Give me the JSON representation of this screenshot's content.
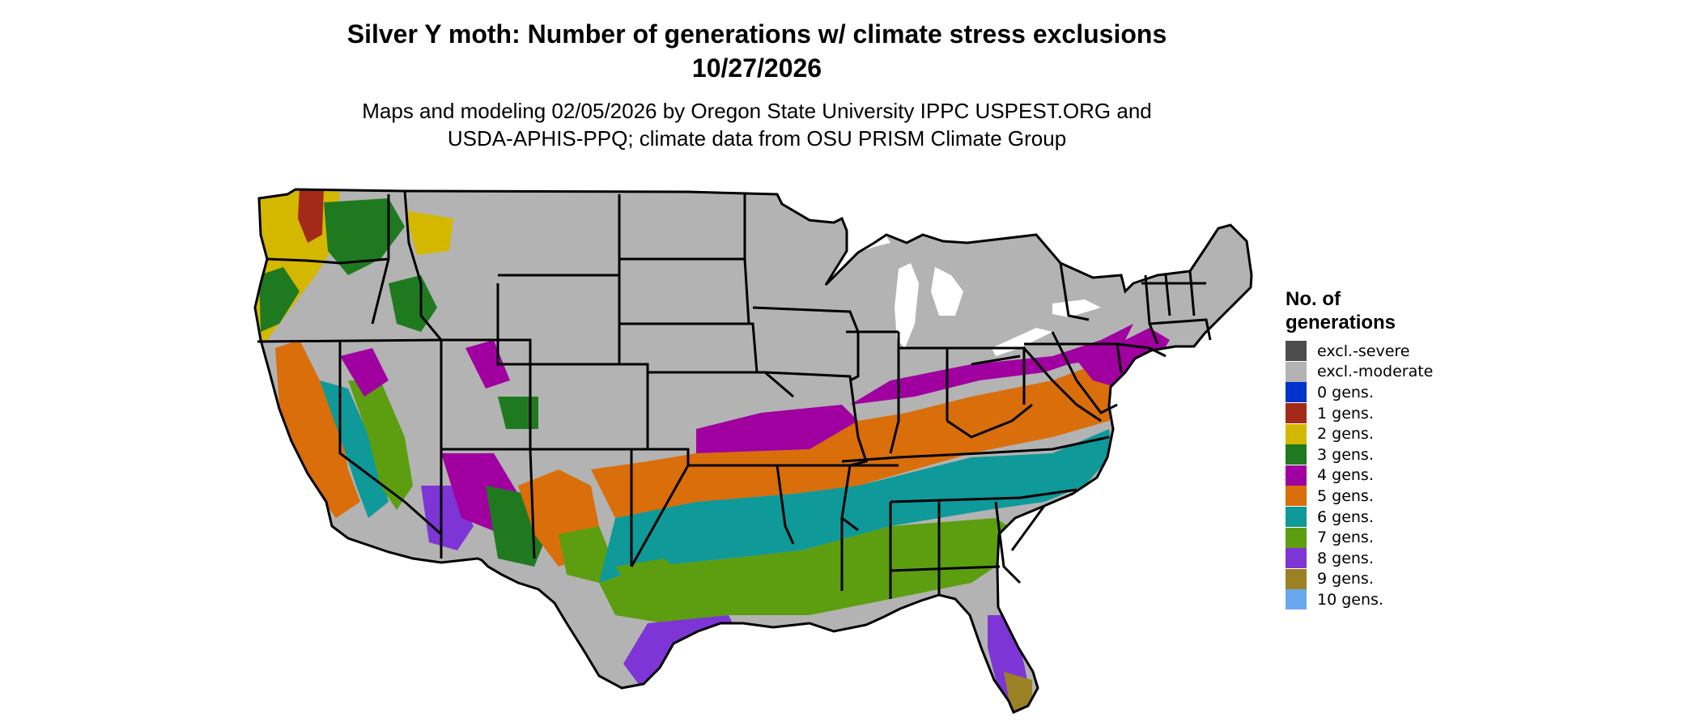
{
  "title": {
    "line1": "Silver Y moth: Number of generations w/ climate stress exclusions",
    "line2": "10/27/2026"
  },
  "subtitle": {
    "line1": "Maps and modeling 02/05/2026 by Oregon State University IPPC USPEST.ORG and",
    "line2": "USDA-APHIS-PPQ; climate data from OSU PRISM Climate Group"
  },
  "legend": {
    "title_line1": "No. of",
    "title_line2": "generations",
    "items": [
      {
        "label": "excl.-severe",
        "color": "#4d4d4d"
      },
      {
        "label": "excl.-moderate",
        "color": "#b3b3b3"
      },
      {
        "label": "0 gens.",
        "color": "#0033cc"
      },
      {
        "label": "1 gens.",
        "color": "#a32a18"
      },
      {
        "label": "2 gens.",
        "color": "#d4b800"
      },
      {
        "label": "3 gens.",
        "color": "#1f7a1f"
      },
      {
        "label": "4 gens.",
        "color": "#a000a0"
      },
      {
        "label": "5 gens.",
        "color": "#d96e0a"
      },
      {
        "label": "6 gens.",
        "color": "#0f9999"
      },
      {
        "label": "7 gens.",
        "color": "#5c9e10"
      },
      {
        "label": "8 gens.",
        "color": "#7e35d6"
      },
      {
        "label": "9 gens.",
        "color": "#9a8224"
      },
      {
        "label": "10 gens.",
        "color": "#6aa8ee"
      }
    ]
  },
  "map": {
    "region": "Contiguous United States",
    "background_color": "#ffffff",
    "border_color": "#000000"
  }
}
